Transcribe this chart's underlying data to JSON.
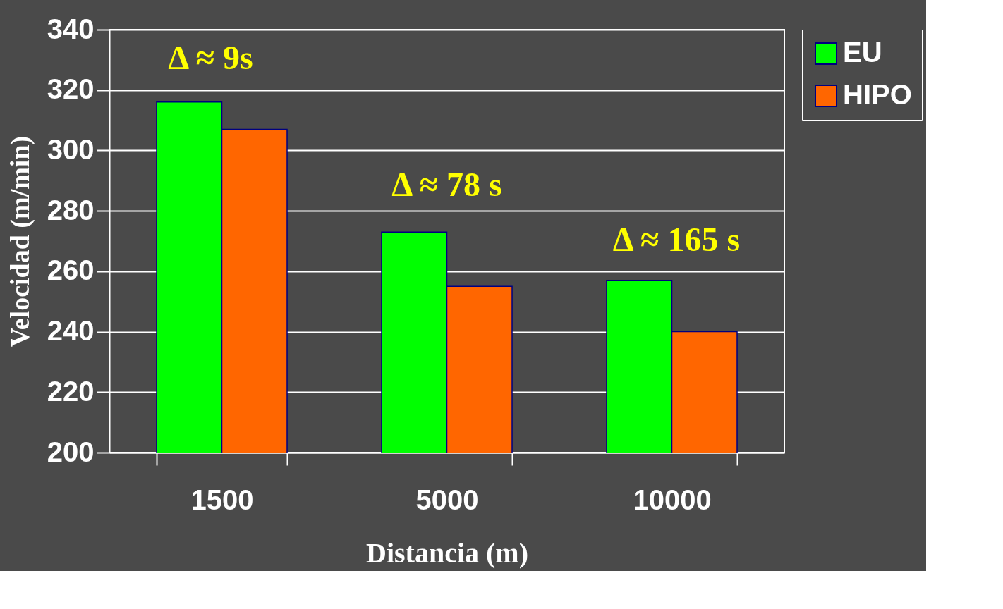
{
  "chart_data": {
    "type": "bar",
    "xlabel": "Distancia (m)",
    "ylabel": "Velocidad (m/min)",
    "categories": [
      "1500",
      "5000",
      "10000"
    ],
    "series": [
      {
        "name": "EU",
        "color": "#00ff00",
        "values": [
          316,
          273,
          257
        ]
      },
      {
        "name": "HIPO",
        "color": "#ff6600",
        "values": [
          307,
          255,
          240
        ]
      }
    ],
    "ylim": [
      200,
      340
    ],
    "yticks": [
      200,
      220,
      240,
      260,
      280,
      300,
      320,
      340
    ],
    "grid": "y",
    "legend": "right",
    "annotations": [
      "Δ ≈ 9s",
      "Δ ≈ 78 s",
      "Δ ≈ 165 s"
    ]
  }
}
